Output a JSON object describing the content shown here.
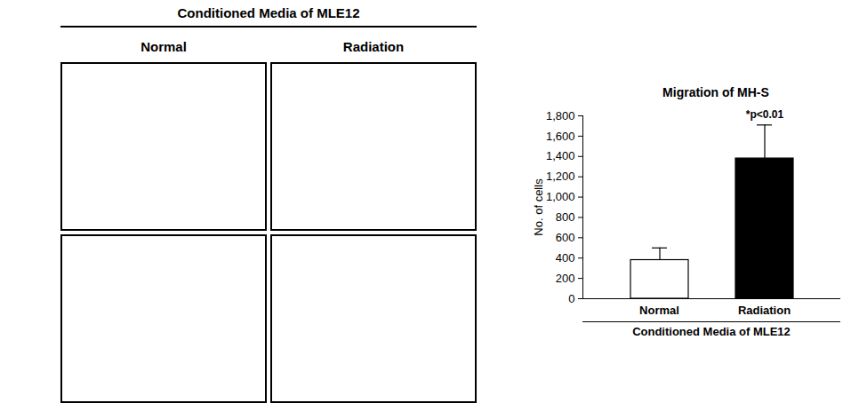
{
  "images": {
    "title": "Conditioned Media of MLE12",
    "columns": [
      "Normal",
      "Radiation"
    ],
    "rows": 2
  },
  "chart_data": {
    "type": "bar",
    "title": "Migration of MH-S",
    "categories": [
      "Normal",
      "Radiation"
    ],
    "values": [
      380,
      1380
    ],
    "errors": [
      120,
      330
    ],
    "colors": [
      "#ffffff",
      "#000000"
    ],
    "ylabel": "No. of cells",
    "xlabel": "Conditioned Media of MLE12",
    "ylim": [
      0,
      1800
    ],
    "yticks": [
      0,
      200,
      400,
      600,
      800,
      1000,
      1200,
      1400,
      1600,
      1800
    ],
    "annotations": [
      {
        "category": "Radiation",
        "text": "*p<0.01"
      }
    ],
    "grid": false
  }
}
